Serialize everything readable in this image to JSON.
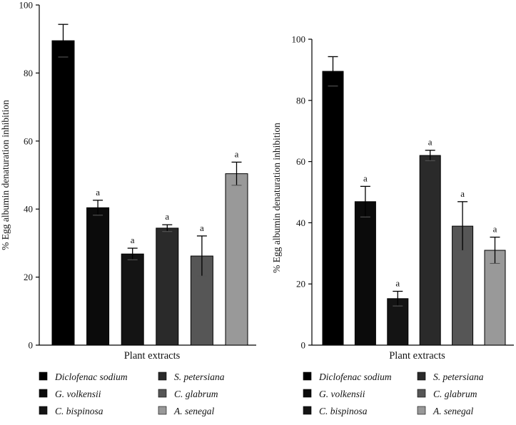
{
  "chart_data": [
    {
      "type": "bar",
      "title": "",
      "xlabel": "Plant extracts",
      "ylabel": "% Egg albumin denaturation inhibition",
      "ylim": [
        0,
        100
      ],
      "yticks": [
        0,
        20,
        40,
        60,
        80,
        100
      ],
      "yticklabels": [
        "0",
        "20",
        "40",
        "60",
        "80",
        "100"
      ],
      "categories": [
        "Diclofenac sodium",
        "G. volkensii",
        "C. bispinosa",
        "S. petersiana",
        "C. glabrum",
        "A. senegal"
      ],
      "values": [
        89.5,
        40.4,
        26.8,
        34.4,
        26.2,
        50.4
      ],
      "errors": [
        4.8,
        2.2,
        1.7,
        1.0,
        5.9,
        3.4
      ],
      "annotations": [
        "",
        "a",
        "a",
        "a",
        "a",
        "a"
      ],
      "colors": [
        "#000000",
        "#0b0b0b",
        "#141414",
        "#2a2a2a",
        "#565656",
        "#999999"
      ],
      "legend": {
        "placement": "bottom",
        "entries": [
          "Diclofenac sodium",
          "S. petersiana",
          "G. volkensii",
          "C. glabrum",
          "C. bispinosa",
          "A. senegal"
        ],
        "colors": [
          "#000000",
          "#2a2a2a",
          "#0b0b0b",
          "#565656",
          "#141414",
          "#999999"
        ]
      },
      "grid": false
    },
    {
      "type": "bar",
      "title": "",
      "xlabel": "Plant extracts",
      "ylabel": "% Egg albumin denaturation inhibition",
      "ylim": [
        0,
        100
      ],
      "yticks": [
        0,
        20,
        40,
        60,
        80,
        100
      ],
      "yticklabels": [
        "0",
        "20",
        "40",
        "60",
        "80",
        "100"
      ],
      "categories": [
        "Diclofenac sodium",
        "G. volkensii",
        "C. bispinosa",
        "S. petersiana",
        "C. glabrum",
        "A. senegal"
      ],
      "values": [
        89.5,
        46.9,
        15.2,
        62.0,
        38.9,
        31.0
      ],
      "errors": [
        4.8,
        5.0,
        2.4,
        1.7,
        8.0,
        4.3
      ],
      "annotations": [
        "",
        "a",
        "a",
        "a",
        "a",
        "a"
      ],
      "colors": [
        "#000000",
        "#0b0b0b",
        "#141414",
        "#2a2a2a",
        "#565656",
        "#999999"
      ],
      "legend": {
        "placement": "bottom",
        "entries": [
          "Diclofenac sodium",
          "S. petersiana",
          "G. volkensii",
          "C. glabrum",
          "C. bispinosa",
          "A. senegal"
        ],
        "colors": [
          "#000000",
          "#2a2a2a",
          "#0b0b0b",
          "#565656",
          "#141414",
          "#999999"
        ]
      },
      "grid": false
    }
  ]
}
